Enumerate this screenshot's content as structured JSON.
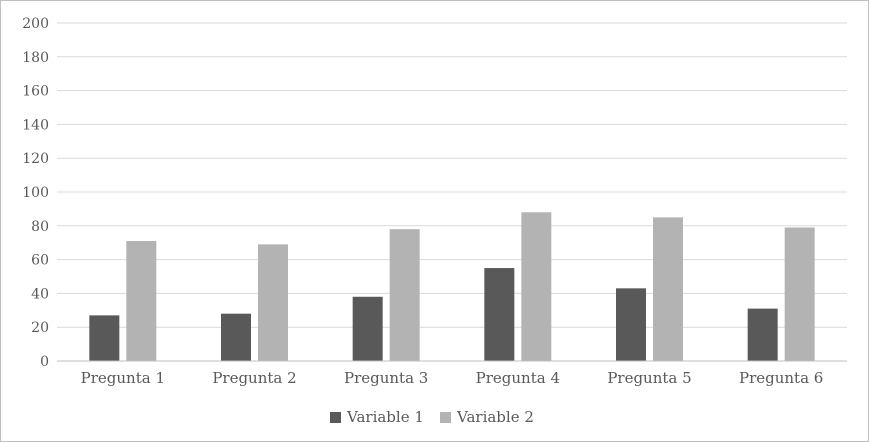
{
  "chart_data": {
    "type": "bar",
    "categories": [
      "Pregunta 1",
      "Pregunta 2",
      "Pregunta 3",
      "Pregunta 4",
      "Pregunta 5",
      "Pregunta 6"
    ],
    "series": [
      {
        "name": "Variable 1",
        "color": "#595959",
        "values": [
          27,
          28,
          38,
          55,
          43,
          31
        ]
      },
      {
        "name": "Variable 2",
        "color": "#b3b3b3",
        "values": [
          71,
          69,
          78,
          88,
          85,
          79
        ]
      }
    ],
    "ylim": [
      0,
      200
    ],
    "yticks": [
      0,
      20,
      40,
      60,
      80,
      100,
      120,
      140,
      160,
      180,
      200
    ],
    "grid": true,
    "legend_position": "bottom",
    "gridline_color": "#d9d9d9",
    "axis_color": "#bfbfbf"
  }
}
